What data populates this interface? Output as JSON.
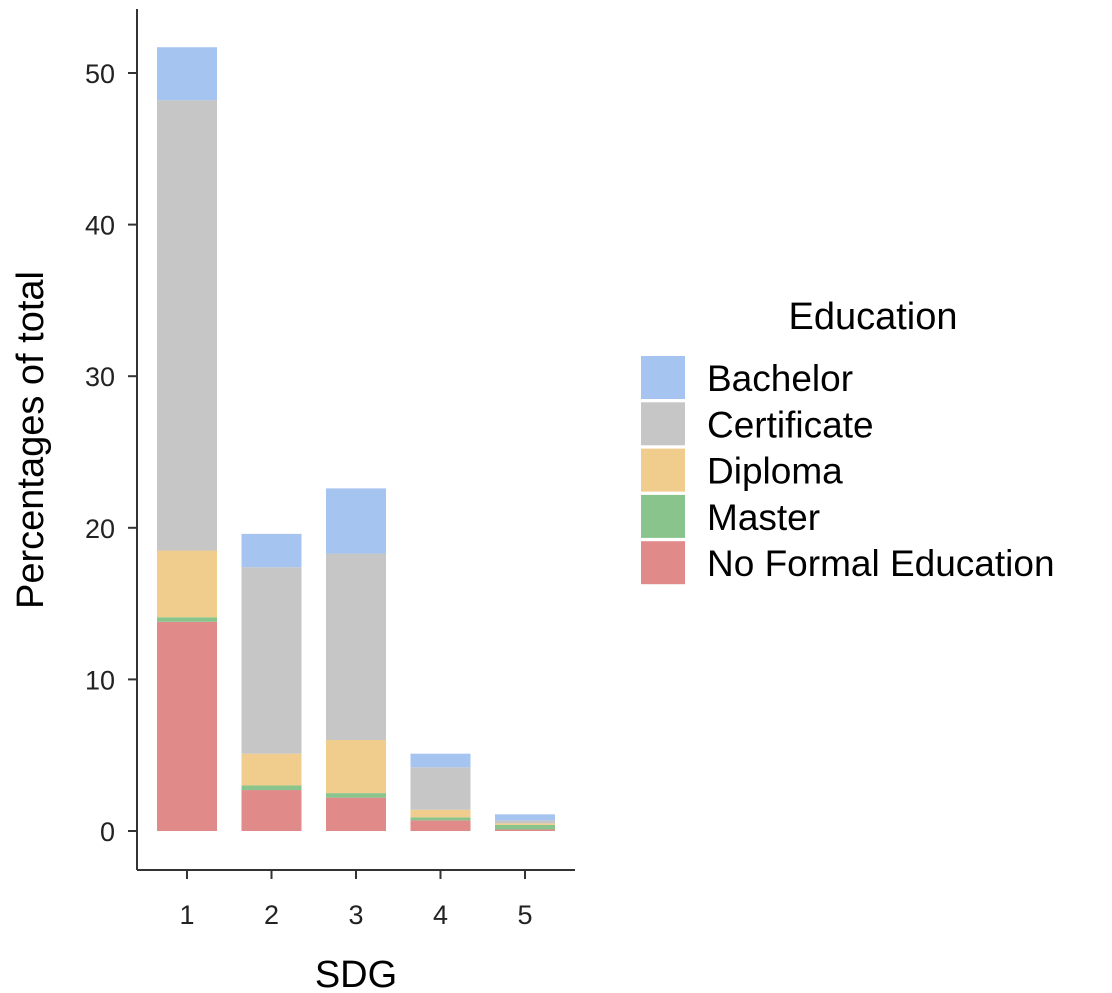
{
  "chart_data": {
    "type": "bar",
    "stacked": true,
    "categories": [
      "1",
      "2",
      "3",
      "4",
      "5"
    ],
    "xlabel": "SDG",
    "ylabel": "Percentages of total",
    "ylim": [
      0,
      53
    ],
    "yticks": [
      0,
      10,
      20,
      30,
      40,
      50
    ],
    "grid": false,
    "legend": {
      "title": "Education",
      "placement": "right"
    },
    "series": [
      {
        "name": "No Formal Education",
        "color": "#e08a89",
        "values": [
          13.8,
          2.7,
          2.2,
          0.7,
          0.1
        ]
      },
      {
        "name": "Master",
        "color": "#88c48b",
        "values": [
          0.3,
          0.3,
          0.3,
          0.2,
          0.3
        ]
      },
      {
        "name": "Diploma",
        "color": "#f0cd8c",
        "values": [
          4.4,
          2.1,
          3.5,
          0.5,
          0.1
        ]
      },
      {
        "name": "Certificate",
        "color": "#c6c6c6",
        "values": [
          29.7,
          12.3,
          12.3,
          2.8,
          0.2
        ]
      },
      {
        "name": "Bachelor",
        "color": "#a6c4f0",
        "values": [
          3.5,
          2.2,
          4.3,
          0.9,
          0.4
        ]
      }
    ],
    "legend_order": [
      "Bachelor",
      "Certificate",
      "Diploma",
      "Master",
      "No Formal Education"
    ]
  }
}
